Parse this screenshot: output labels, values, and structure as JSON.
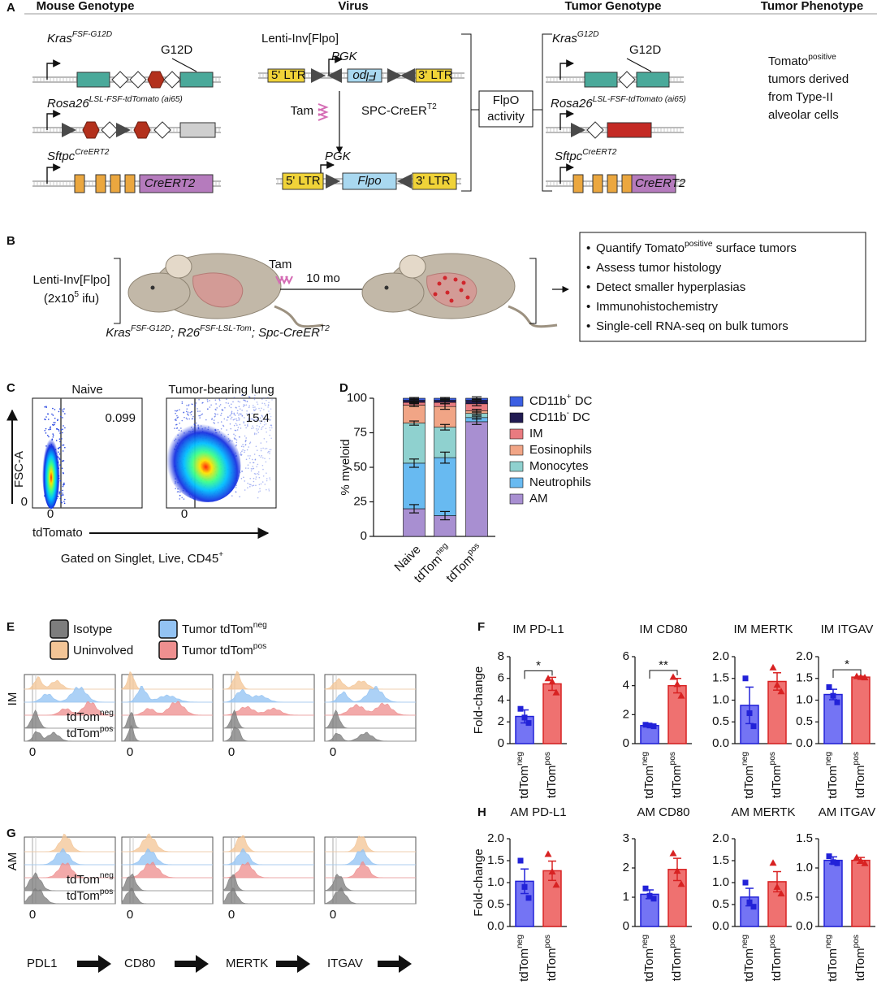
{
  "panel_labels": {
    "a": "A",
    "b": "B",
    "c": "C",
    "d": "D",
    "e": "E",
    "f": "F",
    "g": "G",
    "h": "H"
  },
  "panel_a": {
    "headers": [
      "Mouse Genotype",
      "Virus",
      "Tumor Genotype",
      "Tumor Phenotype"
    ],
    "mouse_kras": [
      "Kras",
      {
        "sup": "FSF-G12D"
      }
    ],
    "mouse_kras_mutation": "G12D",
    "mouse_rosa": [
      "Rosa26",
      {
        "sup": "LSL-FSF-tdTomato (ai65)"
      }
    ],
    "mouse_sftpc": [
      "Sftpc",
      {
        "sup": "CreERT2"
      }
    ],
    "mouse_cre": "CreERT2",
    "virus_name": "Lenti-Inv[Flpo]",
    "virus_promoter": "PGK",
    "virus_ltr5": "5' LTR",
    "virus_flpo": "Flpo",
    "virus_ltr3": "3' LTR",
    "tam": "Tam",
    "spc_cre": [
      "SPC-CreER",
      {
        "sup": "T2"
      }
    ],
    "active_promoter": "PGK",
    "active_ltr5": "5' LTR",
    "active_flpo": "Flpo",
    "active_ltr3": "3' LTR",
    "flpo_activity": [
      "FlpO",
      "activity"
    ],
    "tumor_kras": [
      "Kras",
      {
        "sup": "G12D"
      }
    ],
    "tumor_kras_mutation": "G12D",
    "tumor_rosa": [
      "Rosa26",
      {
        "sup": "LSL-FSF-tdTomato (ai65)"
      }
    ],
    "tumor_sftpc": [
      "Sftpc",
      {
        "sup": "CreERT2"
      }
    ],
    "tumor_cre": "CreERT2",
    "phenotype_first": [
      "Tomato",
      {
        "sup": "positive"
      }
    ],
    "phenotype_lines": [
      "tumors derived",
      "from Type-II",
      "alveolar cells"
    ]
  },
  "panel_b": {
    "virus": "Lenti-Inv[Flpo]",
    "dose": [
      "(2x10",
      {
        "sup": "5"
      },
      " ifu)"
    ],
    "tam": "Tam",
    "duration": "10 mo",
    "genotype": [
      "Kras",
      {
        "sup": "FSF-G12D"
      },
      "; R26",
      {
        "sup": "FSF-LSL-Tom"
      },
      "; Spc-CreER",
      {
        "sup": "T2"
      }
    ],
    "readouts": [
      [
        "Quantify Tomato",
        {
          "sup": "positive"
        },
        " surface tumors"
      ],
      "Assess tumor histology",
      "Detect smaller hyperplasias",
      "Immunohistochemistry",
      "Single-cell RNA-seq on bulk tumors"
    ]
  },
  "panel_c": {
    "titles": [
      "Naive",
      "Tumor-bearing lung"
    ],
    "gate_percents": [
      0.099,
      15.4
    ],
    "ylabel": "FSC-A",
    "y_tick": 0,
    "x_ticks": [
      0,
      0
    ],
    "xlabel": "tdTomato",
    "gating": [
      "Gated on Singlet, Live, CD45",
      {
        "sup": "+"
      }
    ]
  },
  "panel_d": {
    "type": "bar",
    "stacked": true,
    "ylabel": "% myeloid",
    "categories": [
      "Naive",
      [
        "tdTom",
        {
          "sup": "neg"
        }
      ],
      [
        "tdTom",
        {
          "sup": "pos"
        }
      ]
    ],
    "ylim": [
      0,
      100
    ],
    "yticks": [
      0,
      25,
      50,
      75,
      100
    ],
    "series": [
      {
        "name": [
          "CD11b",
          {
            "sup": "+"
          },
          " DC"
        ],
        "color": "#3b5fe3",
        "values": [
          1.5,
          1.5,
          1.5
        ],
        "errors": [
          0.5,
          0.5,
          1
        ]
      },
      {
        "name": [
          "CD11b",
          {
            "sup": "-"
          },
          " DC"
        ],
        "color": "#211b52",
        "values": [
          1.5,
          1.5,
          2.5
        ],
        "errors": [
          0.5,
          0.5,
          1
        ]
      },
      {
        "name": "IM",
        "color": "#e97b80",
        "values": [
          2,
          3,
          5
        ],
        "errors": [
          0.5,
          1,
          1.5
        ]
      },
      {
        "name": "Eosinophils",
        "color": "#f1a586",
        "values": [
          13,
          15,
          2
        ],
        "errors": [
          1,
          2,
          1
        ]
      },
      {
        "name": "Monocytes",
        "color": "#8fd1cf",
        "values": [
          29,
          22,
          3
        ],
        "errors": [
          1.5,
          2,
          1
        ]
      },
      {
        "name": "Neutrophils",
        "color": "#68baf1",
        "values": [
          33,
          42,
          3
        ],
        "errors": [
          3,
          4,
          1
        ]
      },
      {
        "name": "AM",
        "color": "#a88fd1",
        "values": [
          20,
          15,
          83
        ],
        "errors": [
          3,
          3,
          2
        ]
      }
    ]
  },
  "panel_e": {
    "legend": [
      "Isotype",
      "Uninvolved",
      [
        "Tumor tdTom",
        {
          "sup": "neg"
        }
      ],
      [
        "Tumor tdTom",
        {
          "sup": "pos"
        }
      ]
    ],
    "legend_colors": [
      "#7d7d7d",
      "#f3c596",
      "#93c3f3",
      "#ee8f8f"
    ],
    "row_label": "IM",
    "isotype_labels": [
      [
        "tdTom",
        {
          "sup": "neg"
        }
      ],
      [
        "tdTom",
        {
          "sup": "pos"
        }
      ]
    ],
    "zero_ticks": [
      0,
      0,
      0,
      0
    ]
  },
  "panel_g": {
    "row_label": "AM",
    "isotype_labels": [
      [
        "tdTom",
        {
          "sup": "neg"
        }
      ],
      [
        "tdTom",
        {
          "sup": "pos"
        }
      ]
    ],
    "zero_ticks": [
      0,
      0,
      0,
      0
    ],
    "markers": [
      "PDL1",
      "CD80",
      "MERTK",
      "ITGAV"
    ]
  },
  "panel_f": {
    "ylabel": "Fold-change",
    "categories": [
      [
        "tdTom",
        {
          "sup": "neg"
        }
      ],
      [
        "tdTom",
        {
          "sup": "pos"
        }
      ]
    ],
    "colors": [
      "#7474f4",
      "#ef7170"
    ],
    "edge_colors": [
      "#2222d8",
      "#d82222"
    ],
    "charts": [
      {
        "type": "bar",
        "title": "IM PD-L1",
        "ylim": [
          0,
          8
        ],
        "yticks": [
          0,
          2,
          4,
          6,
          8
        ],
        "values": [
          2.5,
          5.5
        ],
        "errors": [
          0.6,
          0.6
        ],
        "points": [
          [
            3.2,
            2.4,
            1.9
          ],
          [
            6.0,
            5.7,
            4.7
          ]
        ],
        "significance": "*"
      },
      {
        "type": "bar",
        "title": "IM CD80",
        "ylim": [
          0,
          6
        ],
        "yticks": [
          0,
          2,
          4,
          6
        ],
        "values": [
          1.25,
          4.0
        ],
        "errors": [
          0.05,
          0.5
        ],
        "points": [
          [
            1.3,
            1.25,
            1.2
          ],
          [
            4.6,
            4.1,
            3.3
          ]
        ],
        "significance": "**"
      },
      {
        "type": "bar",
        "title": "IM MERTK",
        "ylim": [
          0,
          2
        ],
        "yticks": [
          {
            "value": 0,
            "label": "0.0"
          },
          0.5,
          {
            "value": 1,
            "label": "1.0"
          },
          1.5,
          {
            "value": 2,
            "label": "2.0"
          }
        ],
        "values": [
          0.88,
          1.43
        ],
        "errors": [
          0.42,
          0.2
        ],
        "points": [
          [
            1.5,
            0.7,
            0.4
          ],
          [
            1.75,
            1.35,
            1.2
          ]
        ]
      },
      {
        "type": "bar",
        "title": "IM ITGAV",
        "ylim": [
          0,
          2
        ],
        "yticks": [
          {
            "value": 0,
            "label": "0.0"
          },
          0.5,
          {
            "value": 1,
            "label": "1.0"
          },
          1.5,
          {
            "value": 2,
            "label": "2.0"
          }
        ],
        "values": [
          1.13,
          1.53
        ],
        "errors": [
          0.12,
          0.02
        ],
        "points": [
          [
            1.3,
            1.1,
            0.95
          ],
          [
            1.55,
            1.53,
            1.52
          ]
        ],
        "significance": "*"
      }
    ]
  },
  "panel_h": {
    "ylabel": "Fold-change",
    "categories": [
      [
        "tdTom",
        {
          "sup": "neg"
        }
      ],
      [
        "tdTom",
        {
          "sup": "pos"
        }
      ]
    ],
    "colors": [
      "#7474f4",
      "#ef7170"
    ],
    "edge_colors": [
      "#2222d8",
      "#d82222"
    ],
    "charts": [
      {
        "type": "bar",
        "title": "AM PD-L1",
        "ylim": [
          0,
          2
        ],
        "yticks": [
          {
            "value": 0,
            "label": "0.0"
          },
          0.5,
          {
            "value": 1,
            "label": "1.0"
          },
          1.5,
          {
            "value": 2,
            "label": "2.0"
          }
        ],
        "values": [
          1.03,
          1.27
        ],
        "errors": [
          0.28,
          0.22
        ],
        "points": [
          [
            1.5,
            0.9,
            0.65
          ],
          [
            1.65,
            1.25,
            0.95
          ]
        ]
      },
      {
        "type": "bar",
        "title": "AM CD80",
        "ylim": [
          0,
          3
        ],
        "yticks": [
          0,
          1,
          2,
          3
        ],
        "values": [
          1.1,
          1.95
        ],
        "errors": [
          0.15,
          0.38
        ],
        "points": [
          [
            1.3,
            1.05,
            0.95
          ],
          [
            2.5,
            1.9,
            1.45
          ]
        ]
      },
      {
        "type": "bar",
        "title": "AM MERTK",
        "ylim": [
          0,
          2
        ],
        "yticks": [
          {
            "value": 0,
            "label": "0.0"
          },
          0.5,
          {
            "value": 1,
            "label": "1.0"
          },
          1.5,
          {
            "value": 2,
            "label": "2.0"
          }
        ],
        "values": [
          0.67,
          1.02
        ],
        "errors": [
          0.2,
          0.23
        ],
        "points": [
          [
            1.0,
            0.55,
            0.45
          ],
          [
            1.45,
            0.9,
            0.75
          ]
        ]
      },
      {
        "type": "bar",
        "title": "AM ITGAV",
        "ylim": [
          0,
          1.5
        ],
        "yticks": [
          {
            "value": 0,
            "label": "0.0"
          },
          0.5,
          {
            "value": 1,
            "label": "1.0"
          },
          1.5
        ],
        "values": [
          1.13,
          1.13
        ],
        "errors": [
          0.06,
          0.05
        ],
        "points": [
          [
            1.2,
            1.1,
            1.08
          ],
          [
            1.18,
            1.12,
            1.08
          ]
        ]
      }
    ]
  }
}
